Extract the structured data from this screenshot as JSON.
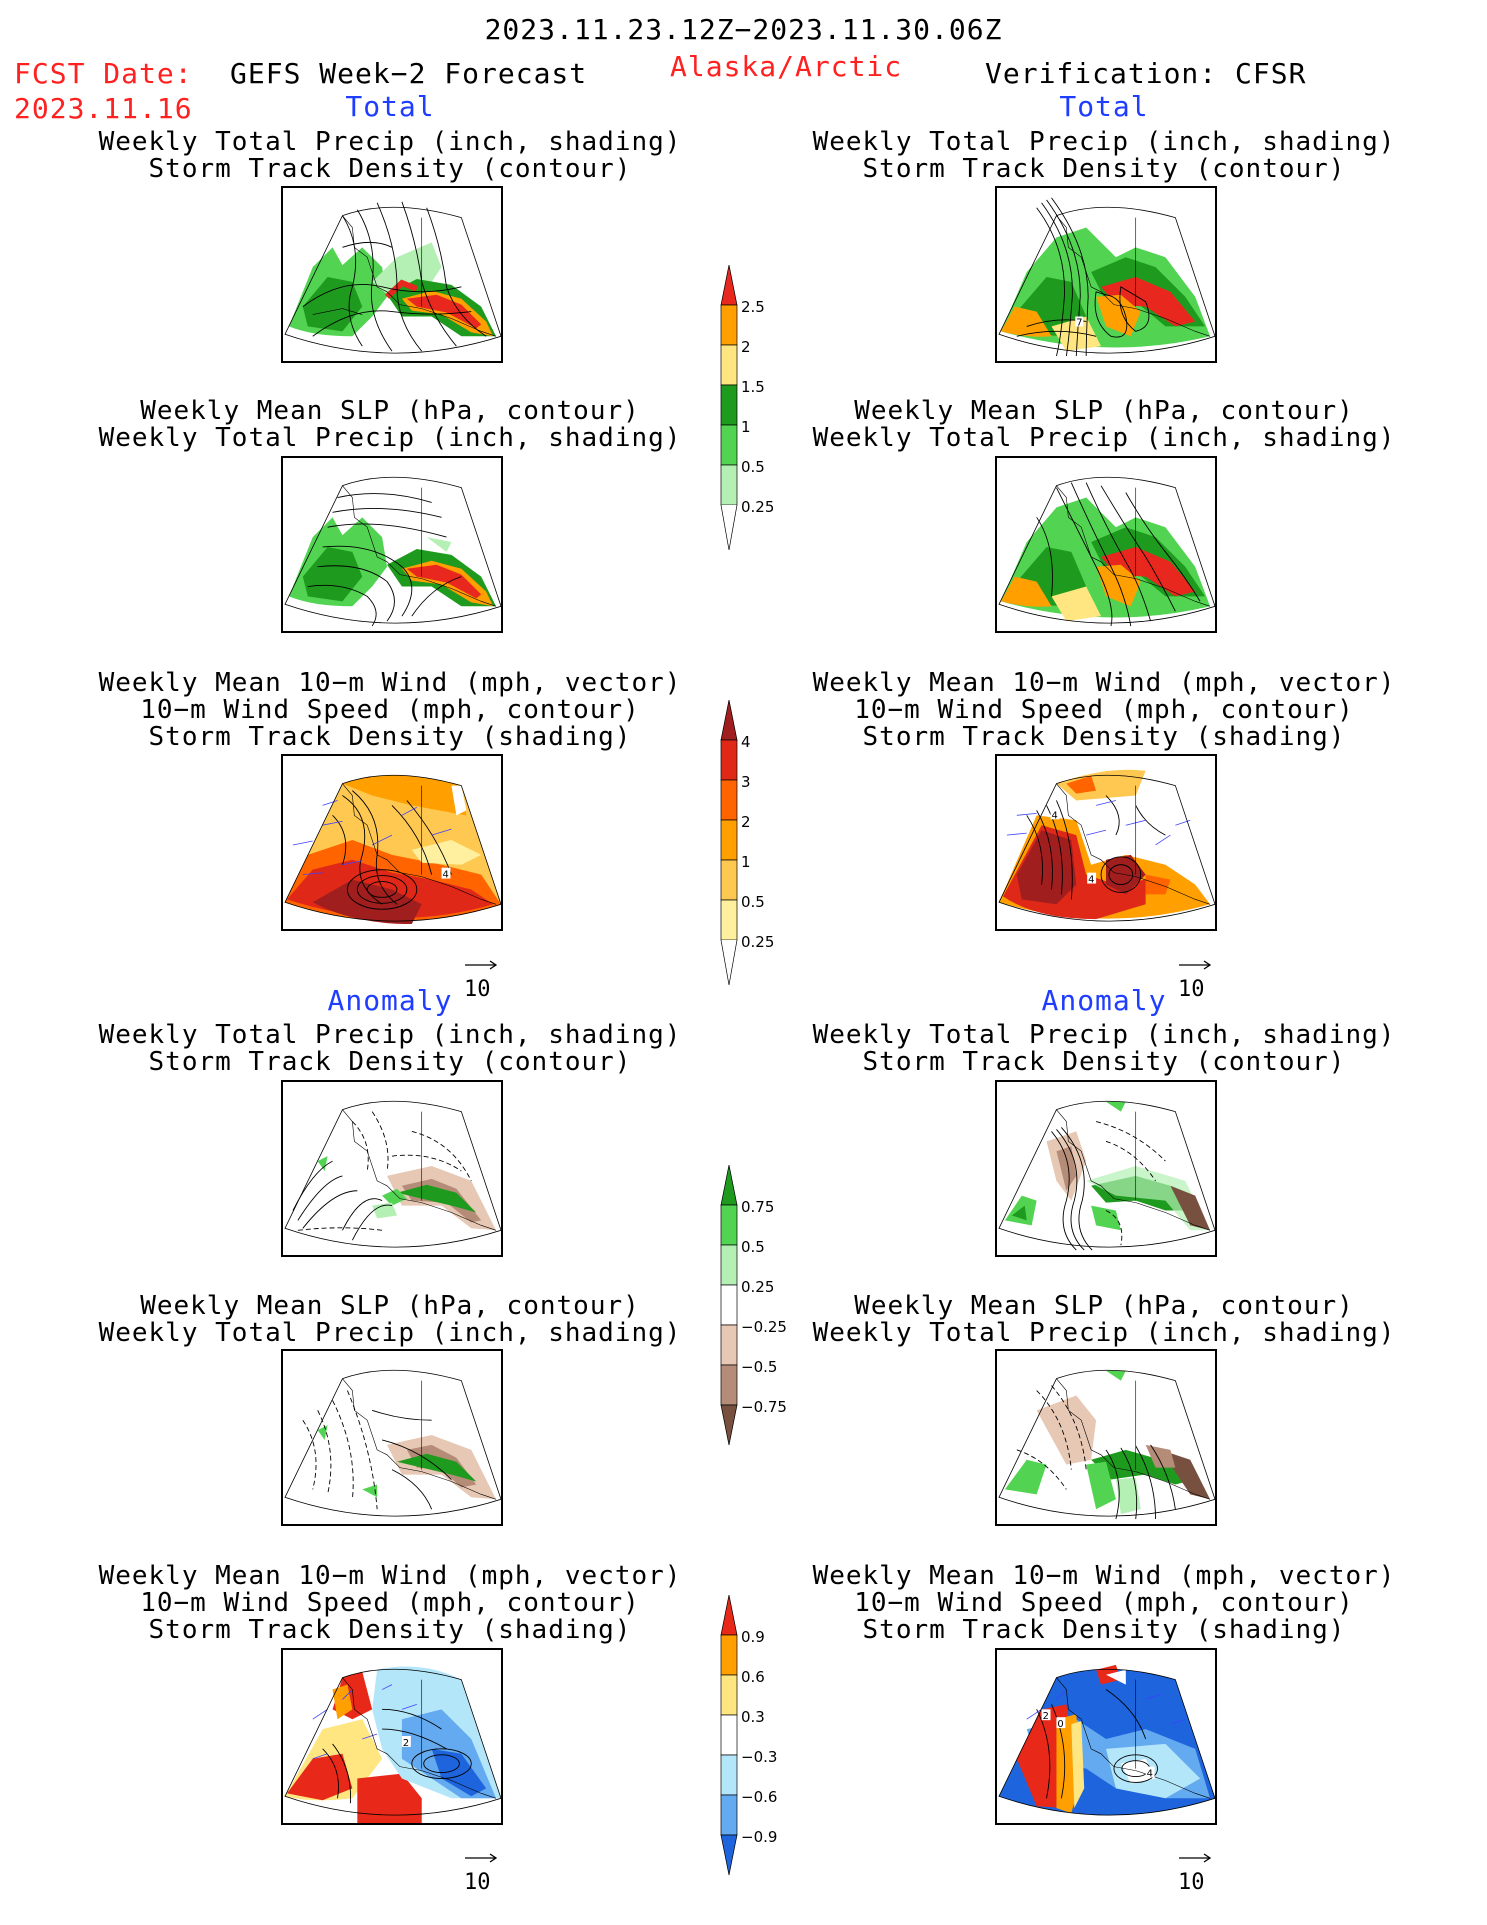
{
  "header": {
    "period": "2023.11.23.12Z−2023.11.30.06Z",
    "fcst_label": "FCST Date:",
    "fcst_date": "2023.11.16",
    "model": "GEFS Week−2 Forecast",
    "region": "Alaska/Arctic",
    "verification": "Verification: CFSR"
  },
  "sections": {
    "total": "Total",
    "anomaly": "Anomaly"
  },
  "titles": {
    "precip_track": [
      "Weekly Total Precip (inch, shading)",
      "Storm Track Density (contour)"
    ],
    "slp_precip": [
      "Weekly Mean SLP (hPa, contour)",
      "Weekly Total Precip (inch, shading)"
    ],
    "wind_track": [
      "Weekly Mean 10−m Wind (mph, vector)",
      "10−m Wind Speed (mph, contour)",
      "Storm Track Density (shading)"
    ]
  },
  "vector_ref": "10",
  "colorbars": {
    "precip_total": {
      "labels": [
        "2.5",
        "2",
        "1.5",
        "1",
        "0.5",
        "0.25"
      ],
      "colors": [
        "#e8281e",
        "#ff9f00",
        "#ffe680",
        "#1e9b1e",
        "#52d452",
        "#b4f0b4"
      ]
    },
    "track_total": {
      "labels": [
        "4",
        "3",
        "2",
        "1",
        "0.5",
        "0.25"
      ],
      "colors": [
        "#a01e1e",
        "#e02818",
        "#ff6400",
        "#ff9f00",
        "#ffc850",
        "#fff0a0"
      ]
    },
    "precip_anom": {
      "labels": [
        "0.75",
        "0.5",
        "0.25",
        "−0.25",
        "−0.5",
        "−0.75"
      ],
      "colors": [
        "#1e9b1e",
        "#52d452",
        "#b4f0b4",
        "#e6c8b4",
        "#b48c78",
        "#785040"
      ]
    },
    "track_anom": {
      "labels": [
        "0.9",
        "0.6",
        "0.3",
        "−0.3",
        "−0.6",
        "−0.9"
      ],
      "colors": [
        "#e82818",
        "#ff9f00",
        "#ffe680",
        "#b4e6fa",
        "#64aaf0",
        "#1e64dc"
      ]
    },
    "contour_labels": {
      "fcst_wind_total": "4",
      "cfsr_precip_total": "7",
      "cfsr_wind_total_a": "4",
      "cfsr_wind_total_b": "4",
      "fcst_wind_anom": "2",
      "cfsr_wind_anom_a": "2",
      "cfsr_wind_anom_b": "0",
      "cfsr_wind_anom_c": "4"
    }
  }
}
